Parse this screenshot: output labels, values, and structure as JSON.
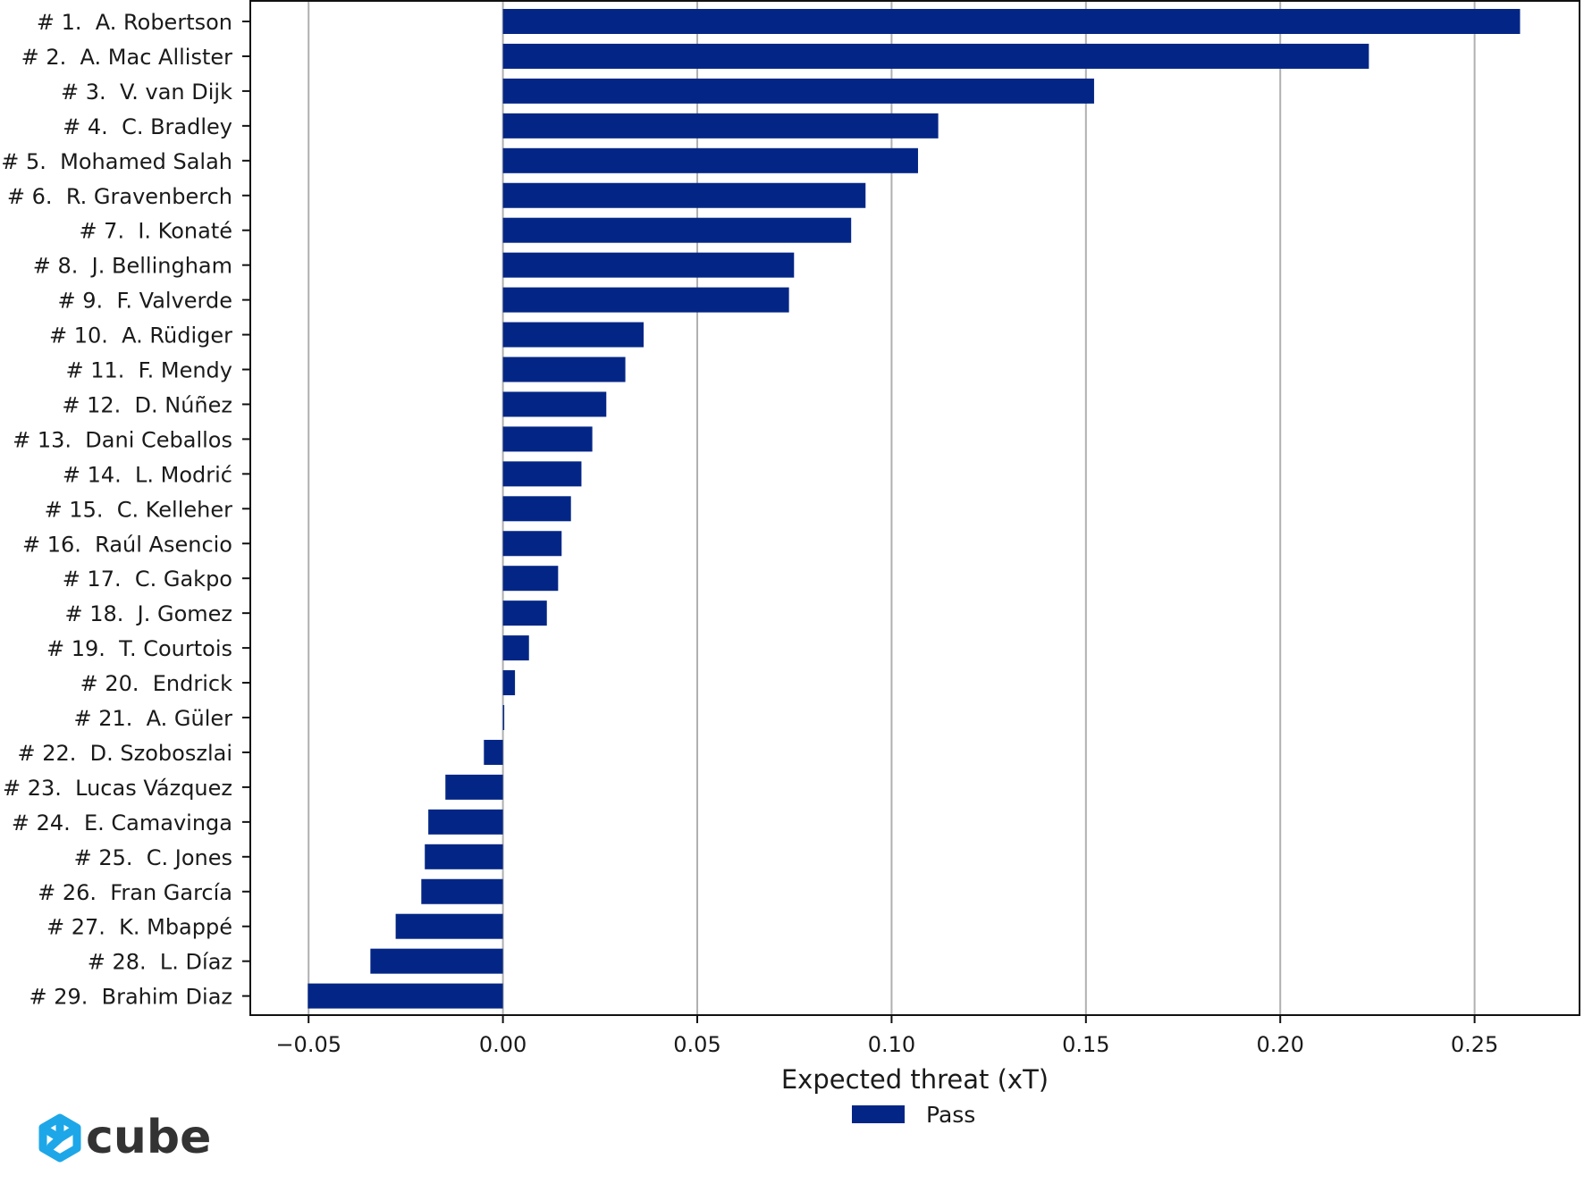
{
  "chart_data": {
    "type": "bar",
    "orientation": "horizontal",
    "categories": [
      "# 1.  A. Robertson",
      "# 2.  A. Mac Allister",
      "# 3.  V. van Dijk",
      "# 4.  C. Bradley",
      "# 5.  Mohamed Salah",
      "# 6.  R. Gravenberch",
      "# 7.  I. Konaté",
      "# 8.  J. Bellingham",
      "# 9.  F. Valverde",
      "# 10.  A. Rüdiger",
      "# 11.  F. Mendy",
      "# 12.  D. Núñez",
      "# 13.  Dani Ceballos",
      "# 14.  L. Modrić",
      "# 15.  C. Kelleher",
      "# 16.  Raúl Asencio",
      "# 17.  C. Gakpo",
      "# 18.  J. Gomez",
      "# 19.  T. Courtois",
      "# 20.  Endrick",
      "# 21.  A. Güler",
      "# 22.  D. Szoboszlai",
      "# 23.  Lucas Vázquez",
      "# 24.  E. Camavinga",
      "# 25.  C. Jones",
      "# 26.  Fran García",
      "# 27.  K. Mbappé",
      "# 28.  L. Díaz",
      "# 29.  Brahim Diaz"
    ],
    "series": [
      {
        "name": "Pass",
        "color": "#032686",
        "values": [
          0.2617,
          0.2228,
          0.1521,
          0.112,
          0.1068,
          0.0933,
          0.0896,
          0.0749,
          0.0736,
          0.0362,
          0.0315,
          0.0266,
          0.023,
          0.0202,
          0.0175,
          0.0151,
          0.0142,
          0.0113,
          0.0067,
          0.0031,
          0.0,
          -0.0049,
          -0.0148,
          -0.0192,
          -0.0201,
          -0.021,
          -0.0276,
          -0.0341,
          -0.0502
        ]
      }
    ],
    "xlabel": "Expected threat (xT)",
    "ylabel": "",
    "xlim": [
      -0.065,
      0.277
    ],
    "xticks": [
      -0.05,
      0.0,
      0.05,
      0.1,
      0.15,
      0.2,
      0.25
    ],
    "xtick_labels": [
      "−0.05",
      "0.00",
      "0.05",
      "0.10",
      "0.15",
      "0.20",
      "0.25"
    ],
    "grid": "vertical",
    "legend": "bottom-center"
  },
  "branding": {
    "logo_text": "cube",
    "logo_icon": "cube-logo-icon",
    "logo_color": "#1ea7e8"
  }
}
